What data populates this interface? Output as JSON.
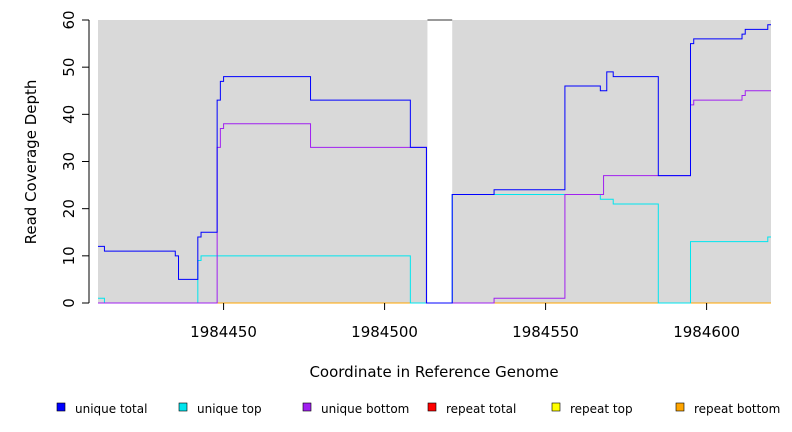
{
  "chart_data": {
    "type": "line",
    "step": true,
    "xlabel": "Coordinate in Reference Genome",
    "ylabel": "Read Coverage Depth",
    "xlim": [
      1984411,
      1984620
    ],
    "ylim": [
      0,
      60
    ],
    "xticks": [
      1984450,
      1984500,
      1984550,
      1984600
    ],
    "yticks": [
      0,
      10,
      20,
      30,
      40,
      50,
      60
    ],
    "background": "#d9d9d9",
    "gap": [
      1984513,
      1984521
    ],
    "legend_position": "bottom",
    "series": [
      {
        "name": "unique total",
        "color": "#0000ff",
        "points": [
          [
            1984411,
            12
          ],
          [
            1984413,
            11
          ],
          [
            1984435,
            10
          ],
          [
            1984436,
            5
          ],
          [
            1984442,
            14
          ],
          [
            1984443,
            15
          ],
          [
            1984448,
            43
          ],
          [
            1984449,
            47
          ],
          [
            1984450,
            48
          ],
          [
            1984477,
            43
          ],
          [
            1984508,
            33
          ],
          [
            1984513,
            0
          ],
          [
            1984521,
            23
          ],
          [
            1984534,
            24
          ],
          [
            1984556,
            46
          ],
          [
            1984567,
            45
          ],
          [
            1984569,
            49
          ],
          [
            1984571,
            48
          ],
          [
            1984585,
            27
          ],
          [
            1984595,
            55
          ],
          [
            1984596,
            56
          ],
          [
            1984611,
            57
          ],
          [
            1984612,
            58
          ],
          [
            1984619,
            59
          ]
        ]
      },
      {
        "name": "unique top",
        "color": "#00e5ee",
        "points": [
          [
            1984411,
            1
          ],
          [
            1984413,
            0
          ],
          [
            1984442,
            9
          ],
          [
            1984443,
            10
          ],
          [
            1984508,
            0
          ],
          [
            1984521,
            23
          ],
          [
            1984567,
            22
          ],
          [
            1984571,
            21
          ],
          [
            1984585,
            0
          ],
          [
            1984595,
            13
          ],
          [
            1984619,
            14
          ]
        ]
      },
      {
        "name": "unique bottom",
        "color": "#a020f0",
        "points": [
          [
            1984411,
            0
          ],
          [
            1984448,
            33
          ],
          [
            1984449,
            37
          ],
          [
            1984450,
            38
          ],
          [
            1984477,
            33
          ],
          [
            1984513,
            0
          ],
          [
            1984534,
            1
          ],
          [
            1984556,
            23
          ],
          [
            1984568,
            27
          ],
          [
            1984595,
            42
          ],
          [
            1984596,
            43
          ],
          [
            1984611,
            44
          ],
          [
            1984612,
            45
          ]
        ]
      },
      {
        "name": "repeat total",
        "color": "#ff0000",
        "points": [
          [
            1984411,
            0
          ]
        ]
      },
      {
        "name": "repeat top",
        "color": "#ffff00",
        "points": [
          [
            1984411,
            0
          ]
        ]
      },
      {
        "name": "repeat bottom",
        "color": "#ffa500",
        "points": [
          [
            1984411,
            0
          ]
        ]
      }
    ]
  }
}
